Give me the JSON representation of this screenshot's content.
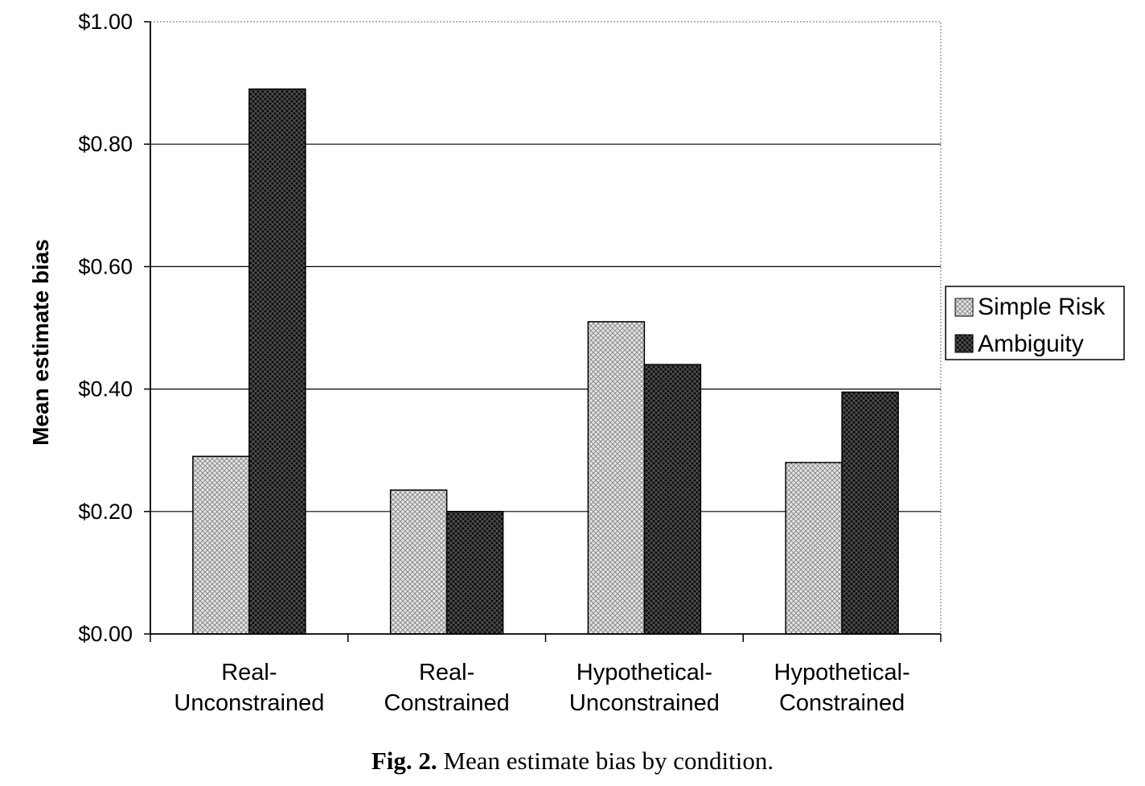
{
  "chart_data": {
    "type": "bar",
    "categories": [
      [
        "Real-",
        "Unconstrained"
      ],
      [
        "Real-",
        "Constrained"
      ],
      [
        "Hypothetical-",
        "Unconstrained"
      ],
      [
        "Hypothetical-",
        "Constrained"
      ]
    ],
    "series": [
      {
        "name": "Simple Risk",
        "values": [
          0.29,
          0.235,
          0.51,
          0.28
        ],
        "pattern": "light-crosshatch"
      },
      {
        "name": "Ambiguity",
        "values": [
          0.89,
          0.2,
          0.44,
          0.395
        ],
        "pattern": "dark-crosshatch"
      }
    ],
    "ylabel": "Mean estimate bias",
    "xlabel": "",
    "ylim": [
      0,
      1.0
    ],
    "yticks": [
      0,
      0.2,
      0.4,
      0.6,
      0.8,
      1.0
    ],
    "ytick_labels": [
      "$0.00",
      "$0.20",
      "$0.40",
      "$0.60",
      "$0.80",
      "$1.00"
    ],
    "grid": true,
    "legend": "right"
  },
  "caption": {
    "label": "Fig. 2.",
    "text": "Mean estimate bias by condition."
  },
  "colors": {
    "light_fill": "#d4d4d4",
    "dark_fill": "#1a1a1a",
    "grid": "#000000"
  }
}
